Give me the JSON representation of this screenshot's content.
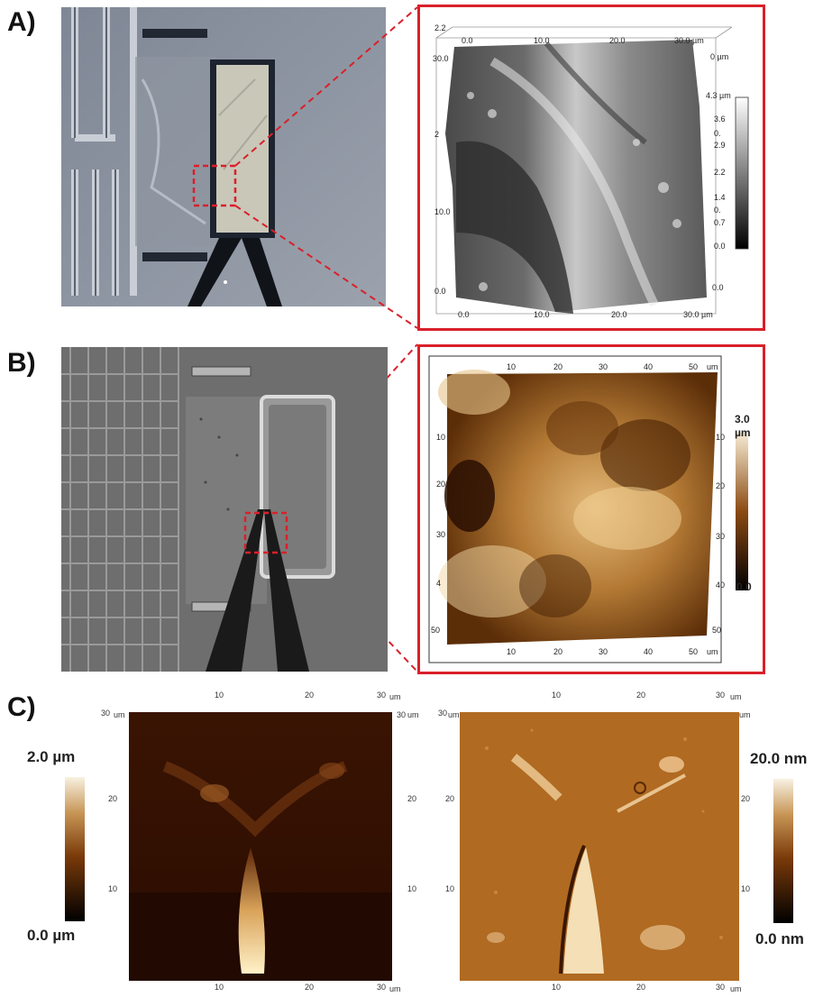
{
  "panels": {
    "a": {
      "label": "A)",
      "colorbar": {
        "top": "4.3 µm",
        "ticks": [
          "3.6",
          "2.9",
          "2.2",
          "1.4",
          "0.7",
          "0.0"
        ],
        "mid_unlabeled": [
          "0.",
          "0."
        ]
      },
      "axes": {
        "top": [
          "0.0",
          "10.0",
          "20.0",
          "30.0 µm"
        ],
        "bottom": [
          "0.0",
          "10.0",
          "20.0",
          "30.0 µm"
        ],
        "left": [
          "30.0",
          "2",
          "10.0",
          "0.0"
        ],
        "right": [
          "0 µm",
          "0.0",
          "0.0",
          "0.0",
          "0.0"
        ],
        "corner": "2.2"
      }
    },
    "b": {
      "label": "B)",
      "colorbar": {
        "top": "3.0",
        "unit": "µm",
        "bottom": "0.0"
      },
      "axes": {
        "top": [
          "10",
          "20",
          "30",
          "40",
          "50",
          "um"
        ],
        "bottom": [
          "10",
          "20",
          "30",
          "40",
          "50",
          "um"
        ],
        "left": [
          "10",
          "20",
          "30",
          "4",
          "50"
        ],
        "right": [
          "10",
          "20",
          "30",
          "40",
          "50"
        ]
      }
    },
    "c": {
      "label": "C)",
      "left_scale": {
        "top": "2.0 µm",
        "bottom": "0.0 µm"
      },
      "right_scale": {
        "top": "20.0 nm",
        "bottom": "0.0 nm"
      },
      "left_axes": {
        "top": [
          "10",
          "20",
          "30",
          "um"
        ],
        "bottom": [
          "10",
          "20",
          "30",
          "um"
        ],
        "left": [
          "30",
          "um",
          "20",
          "10"
        ],
        "right": [
          "30",
          "um",
          "20",
          "10"
        ]
      },
      "right_axes": {
        "top": [
          "10",
          "20",
          "30",
          "um"
        ],
        "bottom": [
          "10",
          "20",
          "30",
          "um"
        ],
        "left": [
          "30",
          "um",
          "20",
          "10"
        ],
        "right": [
          "um",
          "20",
          "10"
        ]
      }
    }
  },
  "colors": {
    "outline_red": "#d9202a",
    "afm_brown": "#8b4a12",
    "afm_dark": "#2a0f02",
    "afm_light": "#f3ddb0"
  }
}
